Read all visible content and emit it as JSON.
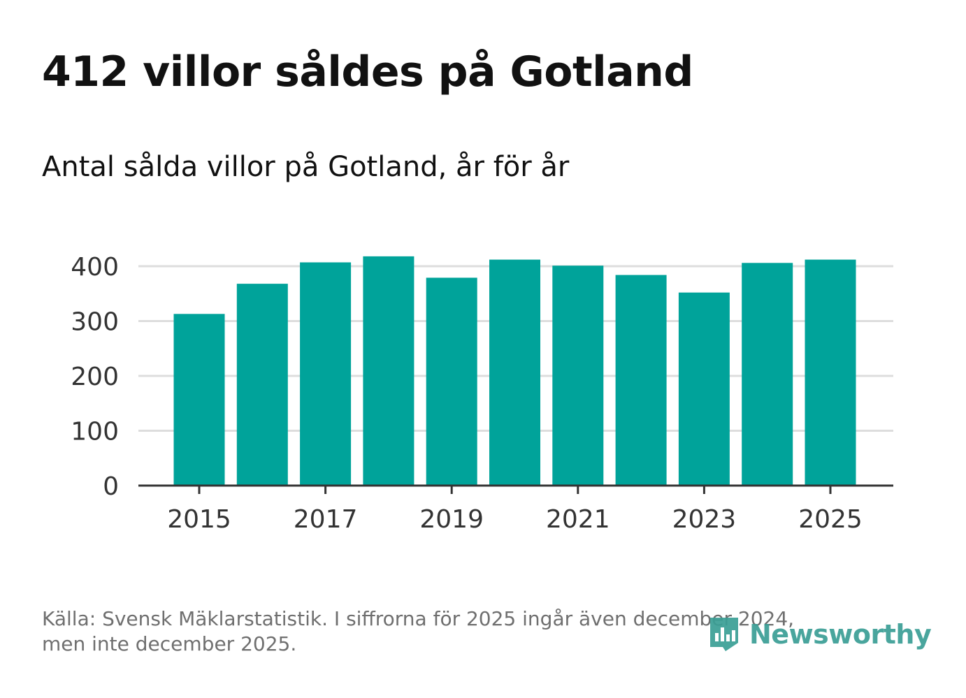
{
  "header": {
    "title": "412 villor såldes på Gotland",
    "subtitle": "Antal sålda villor på Gotland, år för år"
  },
  "footer": {
    "source_line1": "Källa: Svensk Mäklarstatistik. I siffrorna för 2025 ingår även december 2024,",
    "source_line2": "men inte december 2025.",
    "brand": "Newsworthy"
  },
  "colors": {
    "bar": "#00a39a",
    "grid": "#dddddd",
    "axis": "#333333",
    "tick_text": "#333333"
  },
  "chart_data": {
    "type": "bar",
    "title": "Antal sålda villor på Gotland, år för år",
    "xlabel": "",
    "ylabel": "",
    "categories": [
      "2015",
      "2016",
      "2017",
      "2018",
      "2019",
      "2020",
      "2021",
      "2022",
      "2023",
      "2024",
      "2025"
    ],
    "values": [
      313,
      368,
      407,
      418,
      379,
      412,
      401,
      384,
      352,
      406,
      412
    ],
    "ylim": [
      0,
      400
    ],
    "yticks": [
      0,
      100,
      200,
      300,
      400
    ],
    "xticks": [
      "2015",
      "2017",
      "2019",
      "2021",
      "2023",
      "2025"
    ],
    "grid": true
  }
}
